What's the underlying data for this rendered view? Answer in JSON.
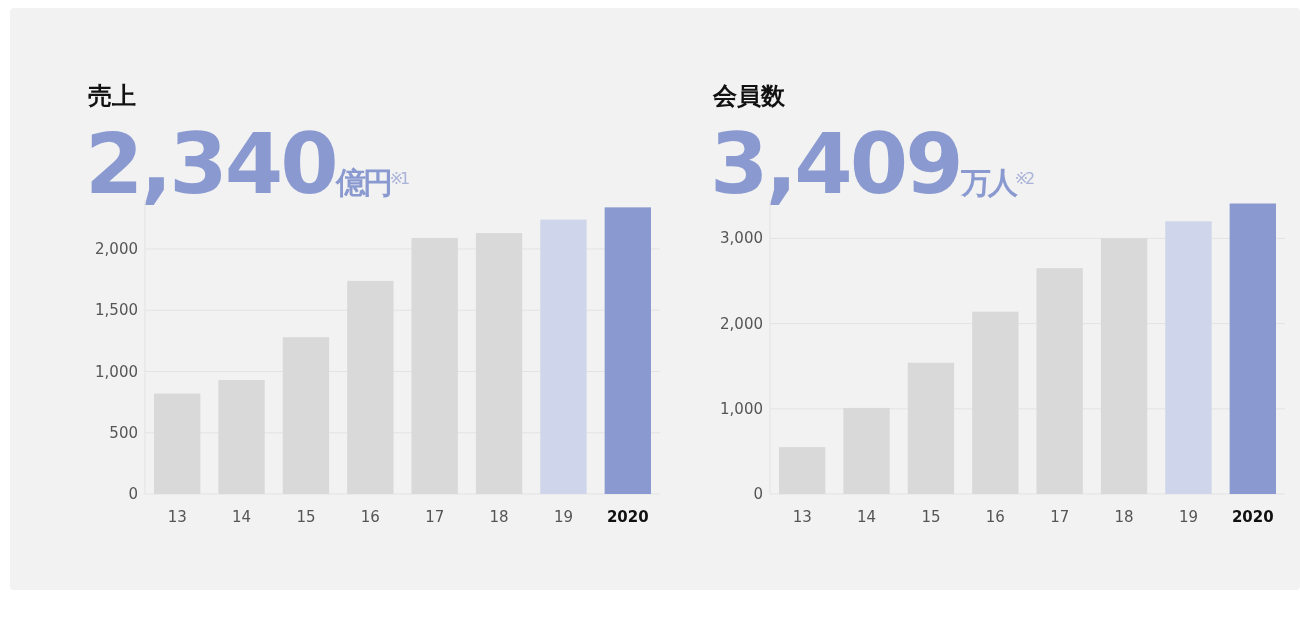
{
  "chart_data": [
    {
      "type": "bar",
      "title": "売上",
      "subtitle": "2,340億円$^{※1}$",
      "categories": [
        "13",
        "14",
        "15",
        "16",
        "17",
        "18",
        "19",
        "2020"
      ],
      "values": [
        820,
        930,
        1280,
        1740,
        2090,
        2130,
        2240,
        2340
      ],
      "colors": [
        "#d9d9d9",
        "#d9d9d9",
        "#d9d9d9",
        "#d9d9d9",
        "#d9d9d9",
        "#d9d9d9",
        "#cfd5ea",
        "#8a9ad0"
      ],
      "ylim": [
        0,
        2400
      ],
      "yticks": [
        0,
        {
          "value": 500,
          "label": "500"
        },
        {
          "value": 1000,
          "label": "1,000"
        },
        {
          "value": 1500,
          "label": "1,500"
        },
        {
          "value": 2000,
          "label": "2,000"
        }
      ],
      "grid": "y"
    },
    {
      "type": "bar",
      "title": "会員数",
      "subtitle": "3,409万人$^{※2}$",
      "categories": [
        "13",
        "14",
        "15",
        "16",
        "17",
        "18",
        "19",
        "2020"
      ],
      "values": [
        550,
        1010,
        1540,
        2140,
        2650,
        3000,
        3200,
        3409
      ],
      "colors": [
        "#d9d9d9",
        "#d9d9d9",
        "#d9d9d9",
        "#d9d9d9",
        "#d9d9d9",
        "#d9d9d9",
        "#cfd5ea",
        "#8a9ad0"
      ],
      "ylim": [
        0,
        3450
      ],
      "yticks": [
        0,
        {
          "value": 1000,
          "label": "1,000"
        },
        {
          "value": 2000,
          "label": "2,000"
        },
        {
          "value": 3000,
          "label": "3,000"
        }
      ],
      "grid": "y"
    }
  ]
}
